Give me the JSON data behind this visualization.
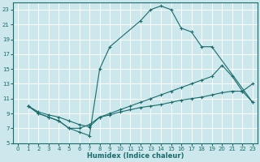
{
  "xlabel": "Humidex (Indice chaleur)",
  "bg_color": "#cce8ec",
  "grid_color": "#ffffff",
  "line_color": "#1a6b6b",
  "xlim": [
    -0.5,
    23.5
  ],
  "ylim": [
    5,
    24
  ],
  "xticks": [
    0,
    1,
    2,
    3,
    4,
    5,
    6,
    7,
    8,
    9,
    10,
    11,
    12,
    13,
    14,
    15,
    16,
    17,
    18,
    19,
    20,
    21,
    22,
    23
  ],
  "yticks": [
    5,
    7,
    9,
    11,
    13,
    15,
    17,
    19,
    21,
    23
  ],
  "curve_arch_x": [
    1,
    2,
    3,
    4,
    5,
    6,
    7,
    8,
    9,
    12,
    13,
    14,
    15,
    16,
    17,
    18,
    19,
    23
  ],
  "curve_arch_y": [
    10,
    9,
    8.5,
    8,
    7,
    6.5,
    6,
    15,
    18,
    21.5,
    23,
    23.5,
    23,
    20.5,
    20,
    18,
    18,
    10.5
  ],
  "curve_linear_x": [
    1,
    2,
    3,
    4,
    5,
    6,
    7,
    8,
    9,
    10,
    11,
    12,
    13,
    14,
    15,
    16,
    17,
    18,
    19,
    20,
    21,
    22,
    23
  ],
  "curve_linear_y": [
    10,
    9.2,
    8.8,
    8.5,
    8,
    7.5,
    7.2,
    8.5,
    9,
    9.5,
    10,
    10.5,
    11,
    11.5,
    12,
    12.5,
    13,
    13.5,
    14,
    15.5,
    14,
    12,
    13
  ],
  "curve_low_x": [
    1,
    2,
    3,
    4,
    5,
    6,
    7,
    8,
    9,
    10,
    11,
    12,
    13,
    14,
    15,
    16,
    17,
    18,
    19,
    20,
    21,
    22,
    23
  ],
  "curve_low_y": [
    10,
    9,
    8.5,
    8,
    7,
    7,
    7.5,
    8.5,
    8.8,
    9.2,
    9.5,
    9.8,
    10,
    10.2,
    10.5,
    10.8,
    11,
    11.2,
    11.5,
    11.8,
    12,
    12,
    10.5
  ]
}
